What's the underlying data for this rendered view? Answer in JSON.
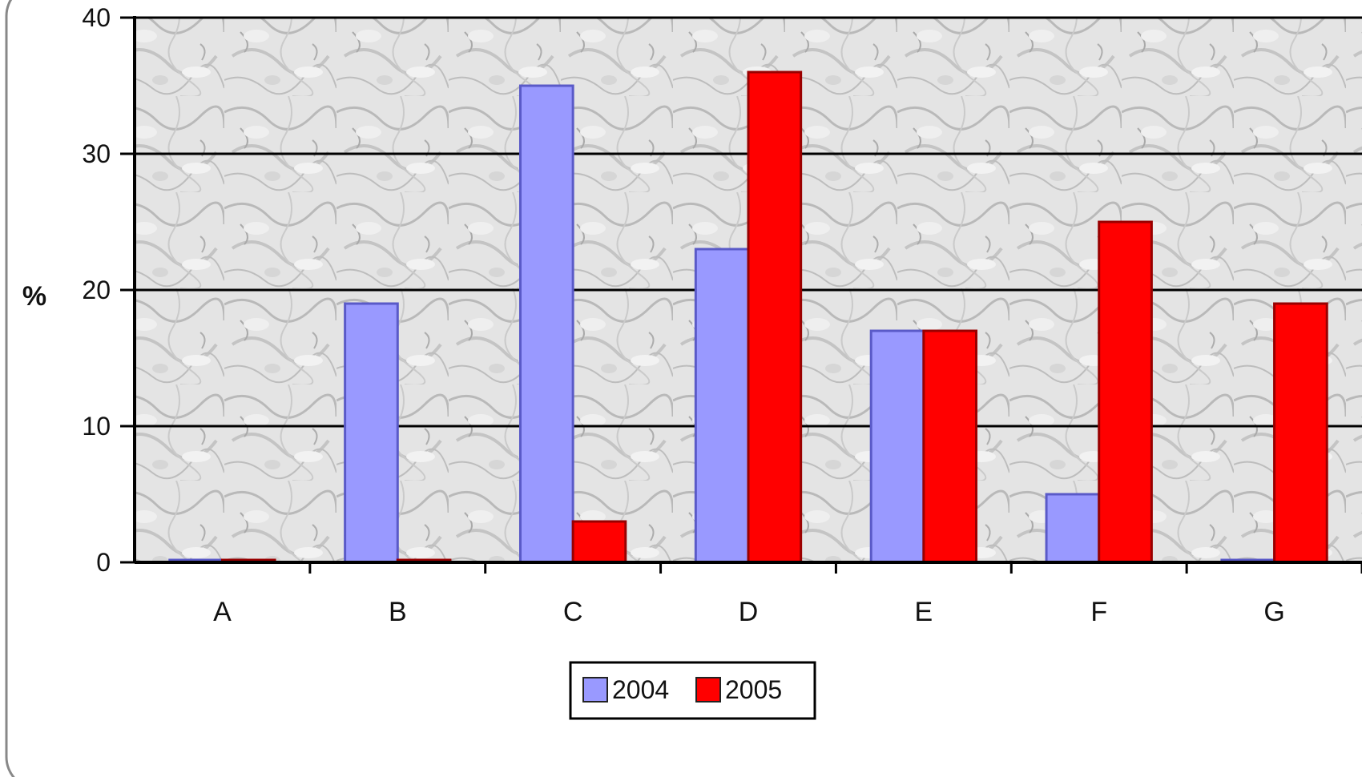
{
  "chart_data": {
    "type": "bar",
    "title": "",
    "xlabel": "",
    "ylabel": "%",
    "ylim": [
      0,
      40
    ],
    "yticks": [
      0,
      10,
      20,
      30,
      40
    ],
    "grid": true,
    "legend_position": "bottom-center",
    "categories": [
      "A",
      "B",
      "C",
      "D",
      "E",
      "F",
      "G"
    ],
    "series": [
      {
        "name": "2004",
        "color": "#9999ff",
        "values": [
          0,
          19,
          35,
          23,
          17,
          5,
          0
        ]
      },
      {
        "name": "2005",
        "color": "#ff0000",
        "values": [
          0,
          0,
          3,
          36,
          17,
          25,
          19
        ]
      }
    ]
  }
}
